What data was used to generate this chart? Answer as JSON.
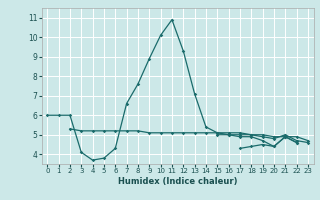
{
  "xlabel": "Humidex (Indice chaleur)",
  "xlim": [
    -0.5,
    23.5
  ],
  "ylim": [
    3.5,
    11.5
  ],
  "yticks": [
    4,
    5,
    6,
    7,
    8,
    9,
    10,
    11
  ],
  "xticks": [
    0,
    1,
    2,
    3,
    4,
    5,
    6,
    7,
    8,
    9,
    10,
    11,
    12,
    13,
    14,
    15,
    16,
    17,
    18,
    19,
    20,
    21,
    22,
    23
  ],
  "bg_color": "#cce8e8",
  "grid_color": "#ffffff",
  "line_color": "#1a6b6b",
  "lines": [
    {
      "x": [
        0,
        1,
        2,
        3,
        4,
        5,
        6,
        7,
        8,
        9,
        10,
        11,
        12,
        13,
        14,
        15,
        16,
        17,
        18,
        19,
        20,
        21,
        22
      ],
      "y": [
        6.0,
        6.0,
        6.0,
        4.1,
        3.7,
        3.8,
        4.3,
        6.6,
        7.6,
        8.9,
        10.1,
        10.9,
        9.3,
        7.1,
        5.4,
        5.1,
        5.0,
        4.9,
        4.9,
        4.7,
        4.4,
        4.9,
        4.6
      ]
    },
    {
      "x": [
        2,
        3,
        4,
        5,
        6,
        7,
        8,
        9,
        10,
        11,
        12,
        13,
        14,
        15,
        16,
        17,
        18,
        19,
        20,
        21,
        22,
        23
      ],
      "y": [
        5.3,
        5.2,
        5.2,
        5.2,
        5.2,
        5.2,
        5.2,
        5.1,
        5.1,
        5.1,
        5.1,
        5.1,
        5.1,
        5.1,
        5.1,
        5.1,
        5.0,
        5.0,
        4.9,
        4.9,
        4.9,
        4.7
      ]
    },
    {
      "x": [
        15,
        16,
        17,
        18,
        19,
        20,
        21,
        22,
        23
      ],
      "y": [
        5.0,
        5.0,
        5.0,
        5.0,
        4.9,
        4.8,
        5.0,
        4.7,
        4.6
      ]
    },
    {
      "x": [
        17,
        18,
        19,
        20,
        21,
        22
      ],
      "y": [
        4.3,
        4.4,
        4.5,
        4.4,
        4.9,
        4.6
      ]
    }
  ]
}
